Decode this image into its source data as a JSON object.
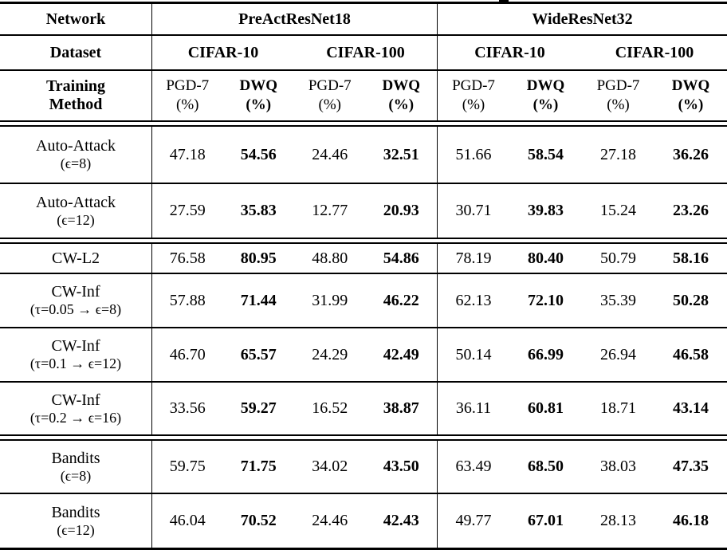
{
  "table": {
    "corner_labels": {
      "network": "Network",
      "dataset": "Dataset",
      "training_line1": "Training",
      "training_line2": "Method"
    },
    "networks": [
      {
        "name": "PreActResNet18",
        "datasets": [
          "CIFAR-10",
          "CIFAR-100"
        ]
      },
      {
        "name": "WideResNet32",
        "datasets": [
          "CIFAR-10",
          "CIFAR-100"
        ]
      }
    ],
    "metrics": {
      "pgd_label": "PGD-7",
      "dwq_label": "DWQ",
      "unit": "(%)"
    },
    "row_groups": [
      {
        "rows": [
          {
            "label": "Auto-Attack",
            "sublabel": "(ϵ=8)",
            "values": [
              "47.18",
              "54.56",
              "24.46",
              "32.51",
              "51.66",
              "58.54",
              "27.18",
              "36.26"
            ]
          },
          {
            "label": "Auto-Attack",
            "sublabel": "(ϵ=12)",
            "values": [
              "27.59",
              "35.83",
              "12.77",
              "20.93",
              "30.71",
              "39.83",
              "15.24",
              "23.26"
            ]
          }
        ]
      },
      {
        "rows": [
          {
            "label": "CW-L2",
            "sublabel": "",
            "values": [
              "76.58",
              "80.95",
              "48.80",
              "54.86",
              "78.19",
              "80.40",
              "50.79",
              "58.16"
            ]
          },
          {
            "label": "CW-Inf",
            "sublabel": "(τ=0.05 → ϵ=8)",
            "values": [
              "57.88",
              "71.44",
              "31.99",
              "46.22",
              "62.13",
              "72.10",
              "35.39",
              "50.28"
            ]
          },
          {
            "label": "CW-Inf",
            "sublabel": "(τ=0.1 → ϵ=12)",
            "values": [
              "46.70",
              "65.57",
              "24.29",
              "42.49",
              "50.14",
              "66.99",
              "26.94",
              "46.58"
            ]
          },
          {
            "label": "CW-Inf",
            "sublabel": "(τ=0.2 → ϵ=16)",
            "values": [
              "33.56",
              "59.27",
              "16.52",
              "38.87",
              "36.11",
              "60.81",
              "18.71",
              "43.14"
            ]
          }
        ]
      },
      {
        "rows": [
          {
            "label": "Bandits",
            "sublabel": "(ϵ=8)",
            "values": [
              "59.75",
              "71.75",
              "34.02",
              "43.50",
              "63.49",
              "68.50",
              "38.03",
              "47.35"
            ]
          },
          {
            "label": "Bandits",
            "sublabel": "(ϵ=12)",
            "values": [
              "46.04",
              "70.52",
              "24.46",
              "42.43",
              "49.77",
              "67.01",
              "28.13",
              "46.18"
            ]
          }
        ]
      }
    ],
    "bold_columns_note": "DWQ columns (2nd, 4th, 6th, 8th value columns) are bold",
    "colors": {
      "text": "#000000",
      "rule": "#000000",
      "background": "#ffffff"
    }
  }
}
